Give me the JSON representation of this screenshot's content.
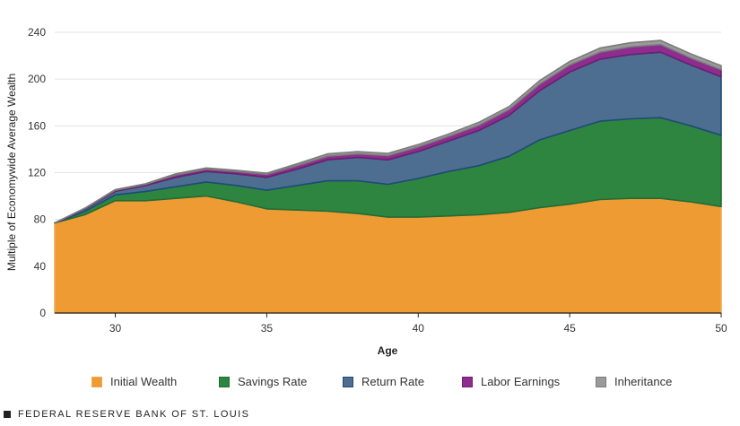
{
  "chart_data": {
    "type": "area",
    "stacked": true,
    "title": "",
    "xlabel": "Age",
    "ylabel": "Multiple of Economywide Average Wealth",
    "xlim": [
      28,
      50
    ],
    "ylim": [
      0,
      240
    ],
    "x_ticks": [
      30,
      35,
      40,
      45,
      50
    ],
    "y_ticks": [
      0,
      40,
      80,
      120,
      160,
      200,
      240
    ],
    "grid": "horizontal",
    "legend_position": "bottom",
    "x": [
      28,
      29,
      30,
      31,
      32,
      33,
      34,
      35,
      36,
      37,
      38,
      39,
      40,
      41,
      42,
      43,
      44,
      45,
      46,
      47,
      48,
      49,
      50
    ],
    "series": [
      {
        "name": "Initial Wealth",
        "color": "#ef9b34",
        "edge": "#f0a852",
        "values": [
          77,
          84,
          96,
          96,
          98,
          100,
          95,
          89,
          88,
          87,
          85,
          82,
          82,
          83,
          84,
          86,
          90,
          93,
          97,
          98,
          98,
          95,
          91
        ]
      },
      {
        "name": "Savings Rate",
        "color": "#2e8540",
        "edge": "#246b33",
        "values": [
          0,
          3,
          5,
          8,
          10,
          12,
          14,
          16,
          21,
          26,
          28,
          28,
          33,
          38,
          42,
          48,
          58,
          63,
          67,
          68,
          69,
          65,
          61
        ]
      },
      {
        "name": "Return Rate",
        "color": "#4d6e91",
        "edge": "#1f4a7a",
        "values": [
          0,
          2,
          3,
          5,
          8,
          9,
          10,
          11,
          14,
          18,
          20,
          21,
          23,
          26,
          30,
          35,
          42,
          50,
          53,
          55,
          56,
          52,
          50
        ]
      },
      {
        "name": "Labor Earnings",
        "color": "#8e2d8f",
        "edge": "#6d1f70",
        "values": [
          0,
          0.5,
          1,
          1,
          2,
          2,
          2,
          2.5,
          3,
          3,
          3,
          3.5,
          4,
          4,
          4.5,
          5,
          5.5,
          6,
          6,
          6.5,
          6.5,
          6,
          6
        ]
      },
      {
        "name": "Inheritance",
        "color": "#9a9a9a",
        "edge": "#7b7b7b",
        "values": [
          0,
          0.2,
          0.5,
          0.5,
          1,
          1,
          1,
          1,
          1.5,
          2,
          2,
          2,
          2,
          2,
          2.5,
          2.5,
          3,
          3,
          3.5,
          3.5,
          3.5,
          3.5,
          3.5
        ]
      }
    ]
  },
  "footer": {
    "source": "FEDERAL RESERVE BANK OF ST. LOUIS"
  }
}
